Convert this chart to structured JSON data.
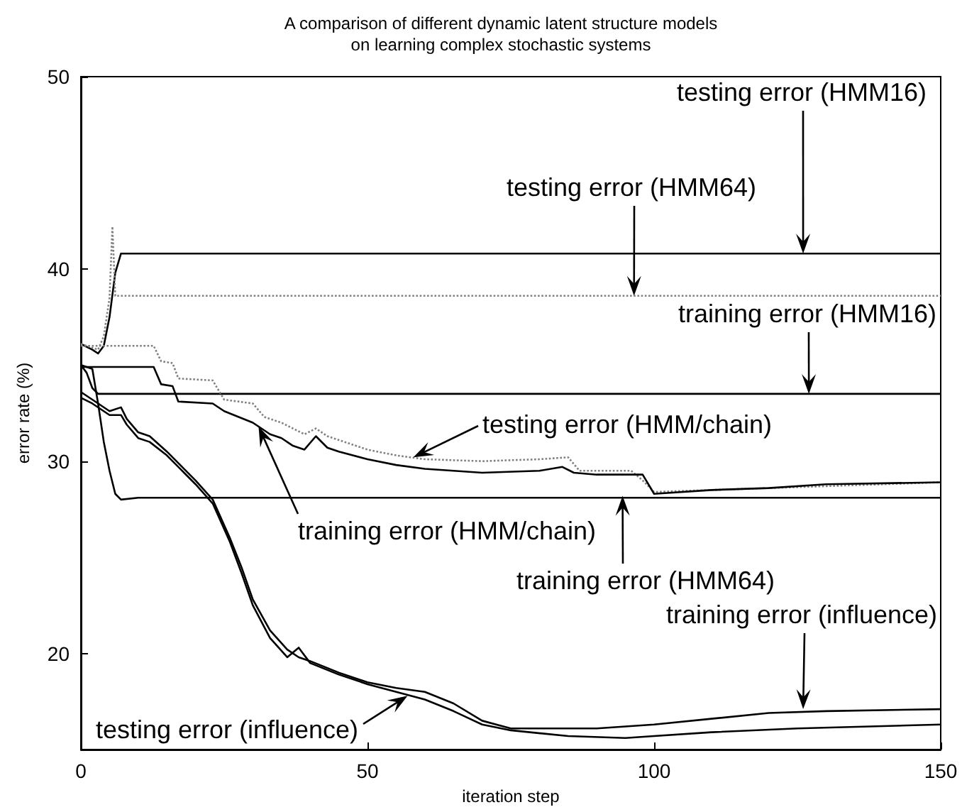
{
  "chart_data": {
    "type": "line",
    "title": "A comparison of different dynamic latent structure models\non learning complex stochastic systems",
    "xlabel": "iteration step",
    "ylabel": "error rate (%)",
    "xlim": [
      0,
      150
    ],
    "xticks": [
      0,
      50,
      100,
      150
    ],
    "ylim": [
      15,
      50
    ],
    "yticks": [
      20,
      30,
      40,
      50
    ],
    "grid": false,
    "marker": "none",
    "series": [
      {
        "color": "#000000",
        "line_style": "solid",
        "x": [
          0,
          2,
          3,
          4,
          5,
          6,
          7,
          150
        ],
        "values": [
          36.1,
          35.8,
          35.6,
          36,
          37.5,
          39.8,
          40.8,
          40.8
        ]
      },
      {
        "color": "#808080",
        "line_style": "dotted",
        "x": [
          0,
          3,
          4,
          5,
          5.5,
          6,
          150
        ],
        "values": [
          36.1,
          35.8,
          36.5,
          38.5,
          42.2,
          38.6,
          38.6
        ]
      },
      {
        "color": "#000000",
        "line_style": "solid",
        "x": [
          0,
          1,
          2,
          3,
          150
        ],
        "values": [
          35,
          34.6,
          33.8,
          33.5,
          33.5
        ]
      },
      {
        "color": "#000000",
        "line_style": "solid",
        "x": [
          0,
          2,
          3,
          4,
          5,
          6,
          7,
          10,
          150
        ],
        "values": [
          35,
          34.8,
          33,
          31,
          29.5,
          28.3,
          28,
          28.1,
          28.1
        ]
      },
      {
        "color": "#808080",
        "line_style": "dotted",
        "x": [
          0,
          12.7,
          14,
          16,
          17,
          23,
          25,
          30,
          32,
          35,
          37,
          39,
          41,
          43,
          45,
          50,
          55,
          60,
          70,
          80,
          85,
          87,
          90,
          96,
          98,
          100,
          110,
          120,
          130,
          150
        ],
        "values": [
          36,
          36,
          35.2,
          35.1,
          34.3,
          34.2,
          33.2,
          33,
          32.3,
          32,
          31.7,
          31.4,
          31.7,
          31.3,
          31.1,
          30.6,
          30.3,
          30.1,
          30,
          30.1,
          30.2,
          29.5,
          29.5,
          29.5,
          29,
          28.4,
          28.5,
          28.6,
          28.7,
          28.9
        ]
      },
      {
        "color": "#000000",
        "line_style": "solid",
        "x": [
          0,
          12.7,
          14,
          16,
          17,
          23,
          25,
          30,
          33,
          35,
          37,
          39,
          41,
          43,
          45,
          50,
          55,
          60,
          70,
          80,
          84,
          86,
          90,
          96,
          98,
          100,
          110,
          120,
          130,
          150
        ],
        "values": [
          34.9,
          34.9,
          34,
          33.9,
          33.1,
          33,
          32.6,
          32,
          31.4,
          31.2,
          30.8,
          30.6,
          31.3,
          30.7,
          30.5,
          30.1,
          29.8,
          29.6,
          29.4,
          29.5,
          29.7,
          29.4,
          29.3,
          29.3,
          29.3,
          28.3,
          28.5,
          28.6,
          28.8,
          28.9
        ]
      },
      {
        "color": "#000000",
        "line_style": "solid",
        "x": [
          0,
          2,
          5,
          7,
          8,
          10,
          12,
          15,
          18,
          20,
          23,
          26,
          28,
          30,
          33,
          36,
          38,
          40,
          45,
          50,
          55,
          60,
          65,
          70,
          75,
          90,
          100,
          110,
          120,
          130,
          150
        ],
        "values": [
          33.6,
          33.2,
          32.6,
          32.8,
          32.2,
          31.5,
          31.3,
          30.5,
          29.6,
          29,
          28,
          26,
          24.5,
          22.8,
          21.2,
          20.2,
          19.8,
          19.6,
          19,
          18.5,
          18.2,
          18,
          17.4,
          16.5,
          16.1,
          16.1,
          16.3,
          16.6,
          16.9,
          17,
          17.1
        ]
      },
      {
        "color": "#000000",
        "line_style": "solid",
        "x": [
          0,
          2,
          5,
          7,
          8,
          10,
          12,
          15,
          18,
          20,
          23,
          26,
          28,
          30,
          33,
          36,
          38,
          40,
          45,
          50,
          55,
          60,
          65,
          70,
          75,
          85,
          95,
          100,
          110,
          125,
          150
        ],
        "values": [
          33.3,
          33,
          32.4,
          32.4,
          31.9,
          31.2,
          31,
          30.3,
          29.4,
          28.8,
          27.8,
          25.8,
          24.2,
          22.5,
          20.8,
          19.8,
          20.3,
          19.5,
          18.9,
          18.4,
          18,
          17.6,
          17,
          16.3,
          16,
          15.7,
          15.6,
          15.7,
          15.9,
          16.1,
          16.3
        ]
      }
    ],
    "annotations": [
      {
        "text": "testing error (HMM16)",
        "x": 126,
        "y": 40.8
      },
      {
        "text": "testing error (HMM64)",
        "x": 96.5,
        "y": 38.6
      },
      {
        "text": "training error (HMM16)",
        "x": 127,
        "y": 33.5
      },
      {
        "text": "testing error (HMM/chain)",
        "x": 58,
        "y": 30.2
      },
      {
        "text": "training error (HMM/chain)",
        "x": 31,
        "y": 31.8
      },
      {
        "text": "training error (HMM64)",
        "x": 94.5,
        "y": 28.2
      },
      {
        "text": "training error (influence)",
        "x": 126,
        "y": 17.1
      },
      {
        "text": "testing error (influence)",
        "x": 57,
        "y": 17.8
      }
    ]
  }
}
